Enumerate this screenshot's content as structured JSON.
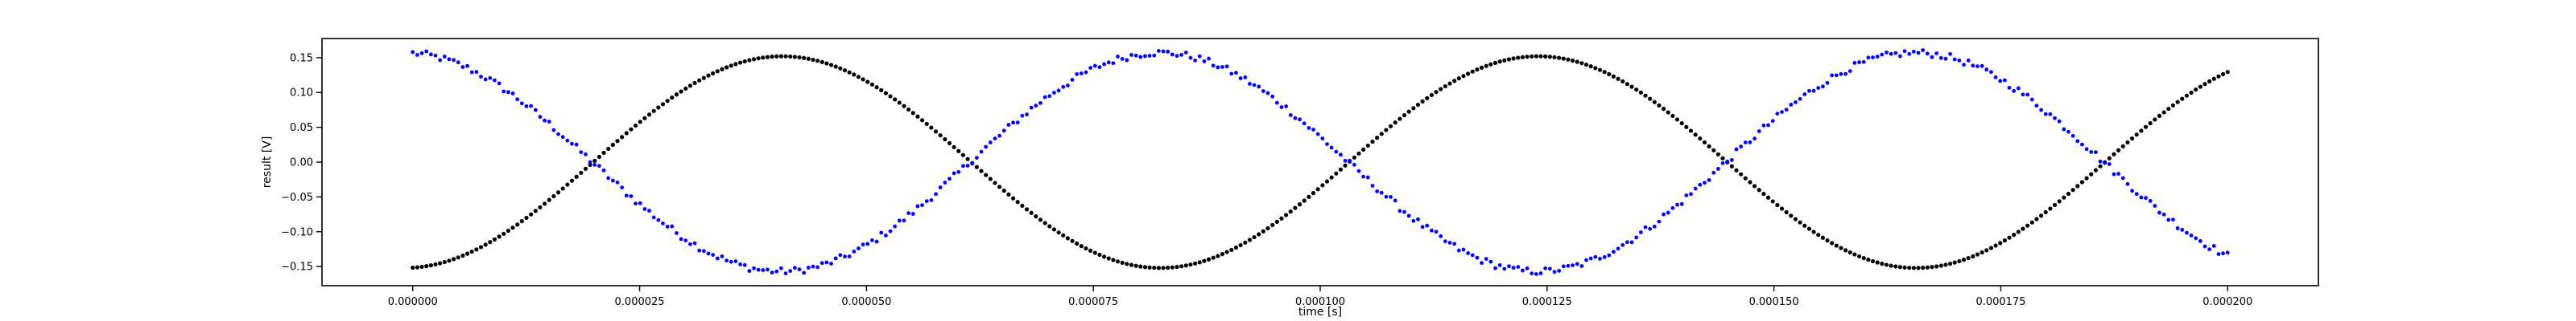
{
  "chart_data": {
    "type": "scatter",
    "xlabel": "time [s]",
    "ylabel": "result [V]",
    "xlim": [
      -1e-05,
      0.00021
    ],
    "ylim": [
      -0.1775,
      0.1775
    ],
    "xticks": [
      0.0,
      2.5e-05,
      5e-05,
      7.5e-05,
      0.0001,
      0.000125,
      0.00015,
      0.000175,
      0.0002
    ],
    "xtick_labels": [
      "0.000000",
      "0.000025",
      "0.000050",
      "0.000075",
      "0.000100",
      "0.000125",
      "0.000150",
      "0.000175",
      "0.000200"
    ],
    "yticks": [
      -0.15,
      -0.1,
      -0.05,
      0.0,
      0.05,
      0.1,
      0.15
    ],
    "ytick_labels": [
      "−0.15",
      "−0.10",
      "−0.05",
      "0.00",
      "0.05",
      "0.10",
      "0.15"
    ],
    "grid": false,
    "legend": "none",
    "series": [
      {
        "color": "#000000",
        "x_range": [
          0.0,
          0.0002
        ],
        "samples": 400,
        "values_description": "sinusoid, amplitude 0.152 V, period 0.0000833 s, phase −1.5 rad, noise-free",
        "amplitude": 0.152,
        "period": 8.33e-05,
        "phase": -1.5,
        "noise": 0.0
      },
      {
        "color": "#0000ff",
        "x_range": [
          0.0,
          0.0002
        ],
        "samples": 400,
        "values_description": "sinusoid, amplitude 0.157 V, period 0.0000833 s, phase 1.65 rad, noise ±0.005 V",
        "amplitude": 0.157,
        "period": 8.33e-05,
        "phase": 1.65,
        "noise": 0.005
      }
    ]
  }
}
